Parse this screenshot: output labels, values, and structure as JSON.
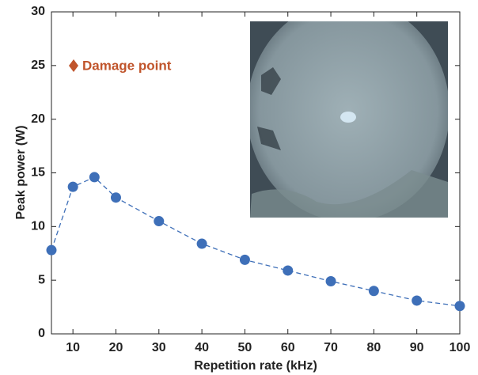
{
  "chart_data": {
    "type": "line",
    "x": [
      5,
      10,
      15,
      20,
      30,
      40,
      50,
      60,
      70,
      80,
      90,
      100
    ],
    "values": [
      7.8,
      13.7,
      14.6,
      12.7,
      10.5,
      8.4,
      6.9,
      5.9,
      4.9,
      4.0,
      3.1,
      2.6
    ],
    "color": "#3e6fb8",
    "line_style": "dashed",
    "marker": "circle",
    "x_label": "Repetition rate (kHz)",
    "y_label": "Peak power (W)",
    "xlim": [
      5,
      100
    ],
    "xticks": [
      10,
      20,
      30,
      40,
      50,
      60,
      70,
      80,
      90,
      100
    ],
    "ylim": [
      0,
      30
    ],
    "yticks": [
      0,
      5,
      10,
      15,
      20,
      25,
      30
    ],
    "annotation": "Damage point",
    "annotation_color": "#c0542b"
  }
}
